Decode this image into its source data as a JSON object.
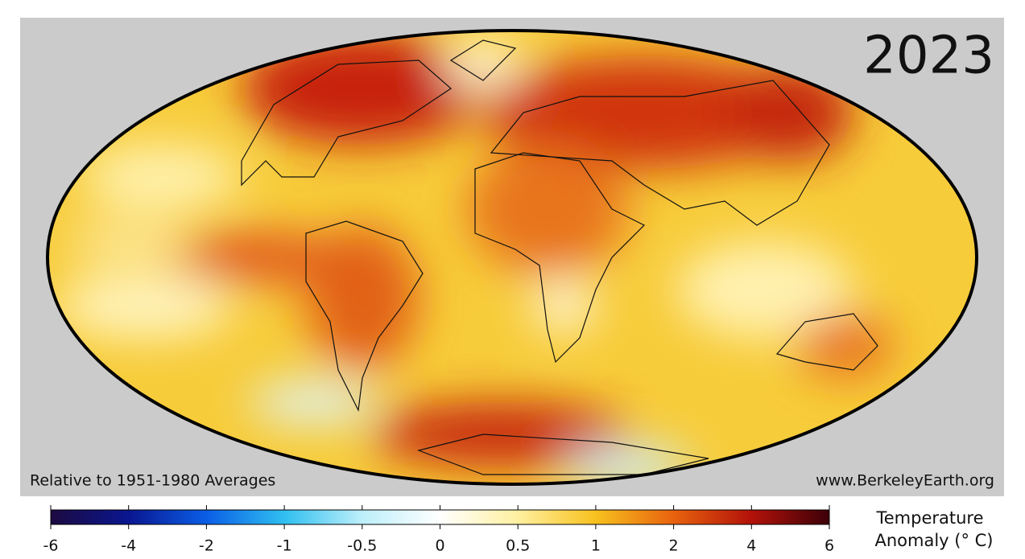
{
  "map": {
    "year": "2023",
    "note": "Relative to 1951-1980 Averages",
    "source": "www.BerkeleyEarth.org"
  },
  "colorbar": {
    "ticks": [
      -6,
      -4,
      -2,
      -1,
      -0.5,
      0,
      0.5,
      1,
      2,
      4,
      6
    ],
    "colors": [
      "#1c0a40",
      "#0a1690",
      "#0a5ee6",
      "#30bff0",
      "#bdeffa",
      "#ffffff",
      "#fff0a0",
      "#f7c11e",
      "#e8620e",
      "#b2120a",
      "#3c0008"
    ],
    "title": [
      "Temperature",
      "Anomaly (° C)"
    ]
  }
}
